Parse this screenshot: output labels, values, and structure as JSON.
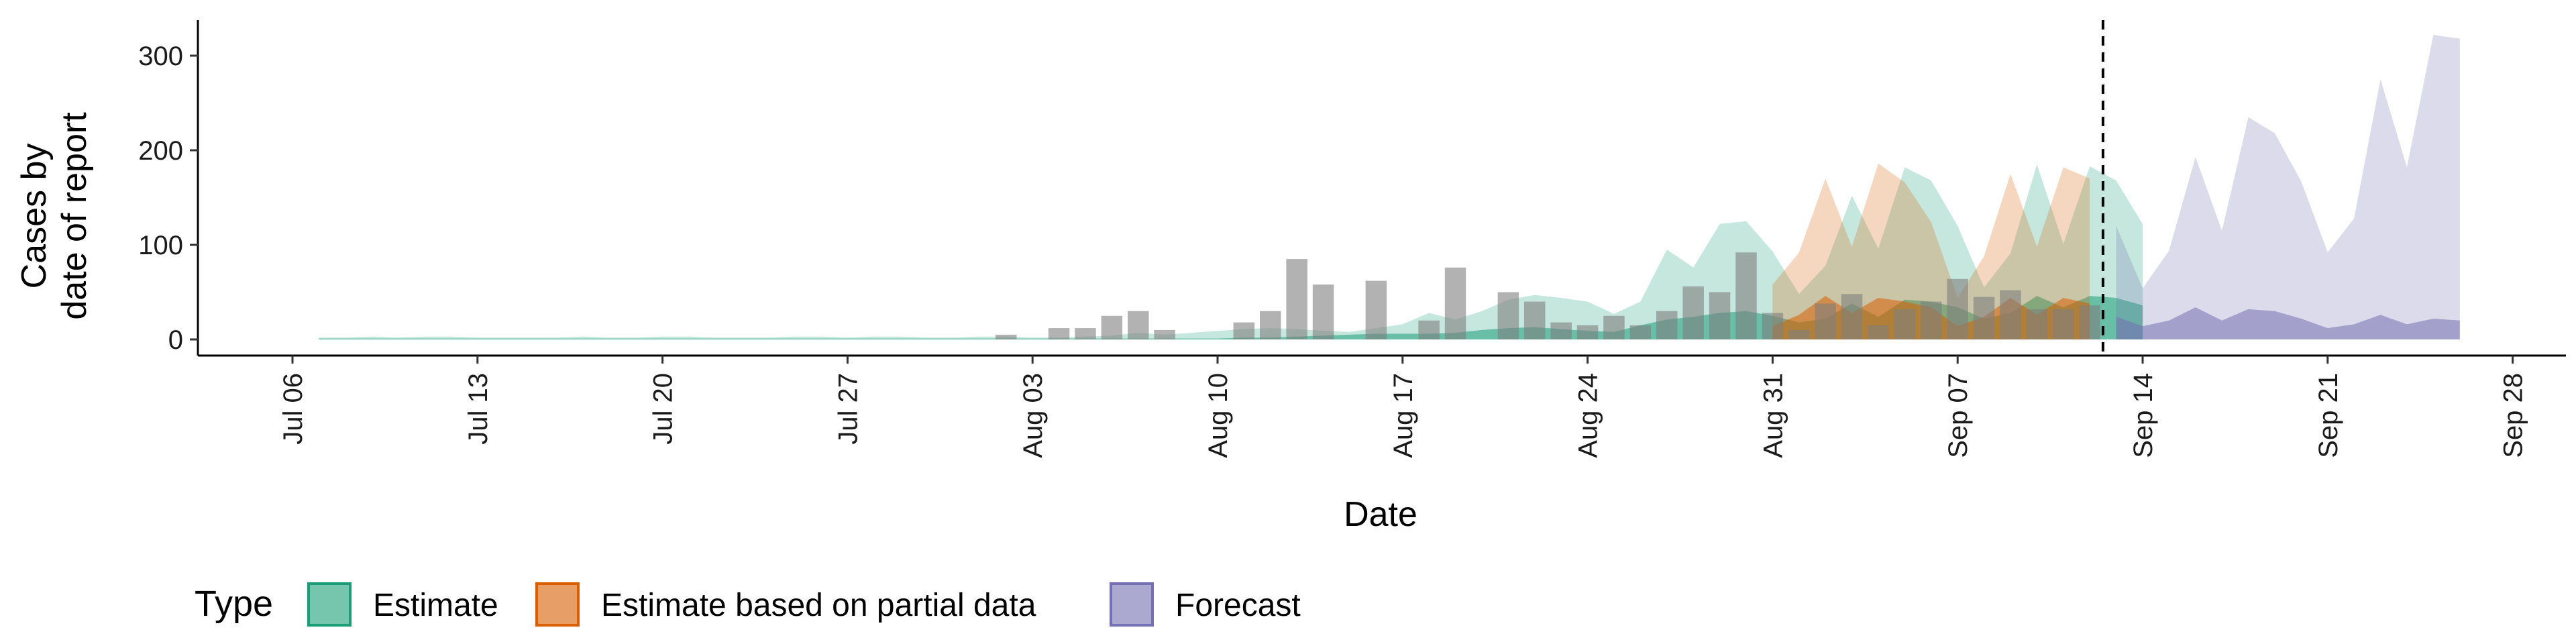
{
  "chart_data": {
    "type": "area",
    "xlabel": "Date",
    "ylabel": [
      "Cases by",
      "date of report"
    ],
    "x_start": "2020-07-06",
    "ylim": [
      0,
      340
    ],
    "y_ticks": [
      0,
      100,
      200,
      300
    ],
    "x_ticks": [
      {
        "label": "Jul 06",
        "date": "2020-07-06"
      },
      {
        "label": "Jul 13",
        "date": "2020-07-13"
      },
      {
        "label": "Jul 20",
        "date": "2020-07-20"
      },
      {
        "label": "Jul 27",
        "date": "2020-07-27"
      },
      {
        "label": "Aug 03",
        "date": "2020-08-03"
      },
      {
        "label": "Aug 10",
        "date": "2020-08-10"
      },
      {
        "label": "Aug 17",
        "date": "2020-08-17"
      },
      {
        "label": "Aug 24",
        "date": "2020-08-24"
      },
      {
        "label": "Aug 31",
        "date": "2020-08-31"
      },
      {
        "label": "Sep 07",
        "date": "2020-09-07"
      },
      {
        "label": "Sep 14",
        "date": "2020-09-14"
      },
      {
        "label": "Sep 21",
        "date": "2020-09-21"
      },
      {
        "label": "Sep 28",
        "date": "2020-09-28"
      }
    ],
    "forecast_line_date": "2020-09-12",
    "legend": {
      "title": "Type",
      "position": "bottom",
      "items": [
        {
          "label": "Estimate",
          "fill": "#1b9e77"
        },
        {
          "label": "Estimate based on partial data",
          "fill": "#d95f02"
        },
        {
          "label": "Forecast",
          "fill": "#7570b3"
        }
      ]
    },
    "series": [
      {
        "type": "Estimate",
        "color": "#1b9e77",
        "start_date": "2020-07-07",
        "upper": [
          2,
          2,
          3,
          2,
          3,
          3,
          2,
          2,
          2,
          2,
          3,
          2,
          2,
          3,
          3,
          2,
          2,
          2,
          3,
          3,
          2,
          3,
          3,
          2,
          2,
          3,
          3,
          2,
          2,
          3,
          4,
          7,
          5,
          7,
          9,
          11,
          12,
          11,
          9,
          8,
          12,
          16,
          28,
          21,
          30,
          42,
          47,
          44,
          40,
          27,
          40,
          95,
          76,
          122,
          125,
          93,
          48,
          78,
          152,
          96,
          182,
          168,
          120,
          55,
          91,
          185,
          101,
          183,
          168,
          122
        ],
        "lower": [
          0,
          0,
          0,
          0,
          0,
          0,
          0,
          0,
          0,
          0,
          0,
          0,
          0,
          0,
          0,
          0,
          0,
          0,
          0,
          0,
          0,
          0,
          0,
          0,
          0,
          0,
          0,
          0,
          0,
          0,
          0,
          0,
          0,
          0,
          0,
          0,
          0,
          0,
          0,
          0,
          0,
          0,
          0,
          0,
          0,
          0,
          0,
          0,
          0,
          0,
          0,
          0,
          0,
          0,
          0,
          0,
          0,
          0,
          0,
          0,
          0,
          0,
          0,
          0,
          0,
          0,
          0,
          0,
          0,
          0
        ],
        "median": [
          1,
          1,
          1,
          1,
          1,
          1,
          1,
          1,
          1,
          1,
          1,
          1,
          1,
          1,
          1,
          1,
          1,
          1,
          1,
          1,
          1,
          1,
          1,
          1,
          1,
          1,
          1,
          1,
          1,
          1,
          1,
          1,
          1,
          1,
          1,
          2,
          2,
          3,
          4,
          5,
          6,
          6,
          6,
          7,
          10,
          12,
          13,
          11,
          9,
          8,
          15,
          21,
          24,
          28,
          30,
          25,
          18,
          22,
          38,
          24,
          42,
          40,
          34,
          22,
          28,
          46,
          34,
          46,
          44,
          36
        ]
      },
      {
        "type": "Estimate based on partial data",
        "color": "#d95f02",
        "start_date": "2020-08-31",
        "upper": [
          58,
          92,
          170,
          98,
          186,
          166,
          124,
          44,
          88,
          175,
          98,
          182,
          170
        ],
        "lower": [
          0,
          0,
          0,
          0,
          0,
          0,
          0,
          0,
          0,
          0,
          0,
          0,
          0
        ],
        "median": [
          14,
          26,
          46,
          28,
          44,
          40,
          34,
          14,
          24,
          44,
          26,
          44,
          38
        ]
      },
      {
        "type": "Forecast",
        "color": "#7570b3",
        "start_date": "2020-09-13",
        "upper": [
          120,
          54,
          94,
          193,
          115,
          235,
          218,
          167,
          92,
          128,
          275,
          182,
          322,
          318
        ],
        "lower": [
          0,
          0,
          0,
          0,
          0,
          0,
          0,
          0,
          0,
          0,
          0,
          0,
          0,
          0
        ],
        "median": [
          24,
          14,
          20,
          34,
          20,
          32,
          30,
          22,
          12,
          16,
          26,
          16,
          22,
          20
        ]
      }
    ],
    "reported_cases": [
      {
        "date": "2020-08-02",
        "value": 5
      },
      {
        "date": "2020-08-04",
        "value": 12
      },
      {
        "date": "2020-08-05",
        "value": 12
      },
      {
        "date": "2020-08-06",
        "value": 25
      },
      {
        "date": "2020-08-07",
        "value": 30
      },
      {
        "date": "2020-08-08",
        "value": 10
      },
      {
        "date": "2020-08-11",
        "value": 18
      },
      {
        "date": "2020-08-12",
        "value": 30
      },
      {
        "date": "2020-08-13",
        "value": 85
      },
      {
        "date": "2020-08-14",
        "value": 58
      },
      {
        "date": "2020-08-16",
        "value": 62
      },
      {
        "date": "2020-08-18",
        "value": 20
      },
      {
        "date": "2020-08-19",
        "value": 76
      },
      {
        "date": "2020-08-21",
        "value": 50
      },
      {
        "date": "2020-08-22",
        "value": 40
      },
      {
        "date": "2020-08-23",
        "value": 18
      },
      {
        "date": "2020-08-24",
        "value": 15
      },
      {
        "date": "2020-08-25",
        "value": 25
      },
      {
        "date": "2020-08-26",
        "value": 15
      },
      {
        "date": "2020-08-27",
        "value": 30
      },
      {
        "date": "2020-08-28",
        "value": 56
      },
      {
        "date": "2020-08-29",
        "value": 50
      },
      {
        "date": "2020-08-30",
        "value": 92
      },
      {
        "date": "2020-08-31",
        "value": 28
      },
      {
        "date": "2020-09-01",
        "value": 10
      },
      {
        "date": "2020-09-02",
        "value": 38
      },
      {
        "date": "2020-09-03",
        "value": 48
      },
      {
        "date": "2020-09-04",
        "value": 15
      },
      {
        "date": "2020-09-05",
        "value": 32
      },
      {
        "date": "2020-09-06",
        "value": 40
      },
      {
        "date": "2020-09-07",
        "value": 64
      },
      {
        "date": "2020-09-08",
        "value": 45
      },
      {
        "date": "2020-09-09",
        "value": 52
      },
      {
        "date": "2020-09-10",
        "value": 32
      },
      {
        "date": "2020-09-11",
        "value": 32
      },
      {
        "date": "2020-09-12",
        "value": 36
      }
    ]
  }
}
